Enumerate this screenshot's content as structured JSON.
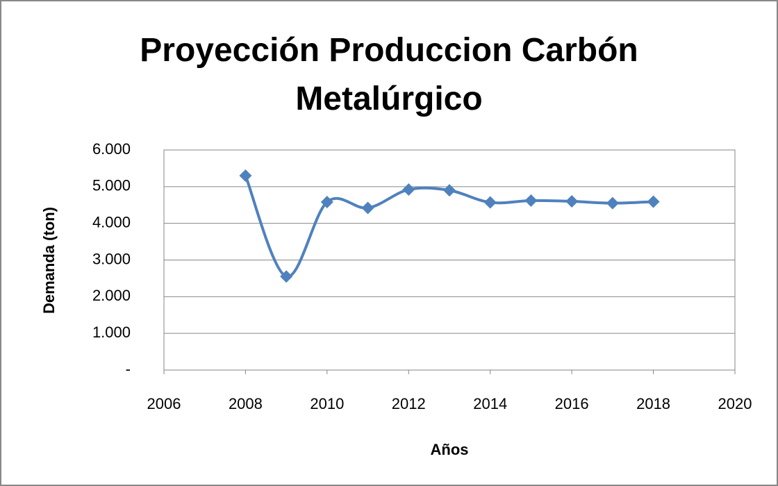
{
  "chart_data": {
    "type": "line",
    "title": "Proyección Produccion Carbón Metalúrgico",
    "x_label": "Años",
    "y_label": "Demanda (ton)",
    "x": [
      2008,
      2009,
      2010,
      2011,
      2012,
      2013,
      2014,
      2015,
      2016,
      2017,
      2018
    ],
    "series": [
      {
        "name": "Demanda",
        "color": "#4f81bd",
        "values": [
          5300,
          2550,
          4580,
          4420,
          4920,
          4900,
          4570,
          4620,
          4600,
          4550,
          4590
        ]
      }
    ],
    "xlim": [
      2006,
      2020
    ],
    "xticks": [
      2006,
      2008,
      2010,
      2012,
      2014,
      2016,
      2018,
      2020
    ],
    "ylim": [
      0,
      6000
    ],
    "yticks": [
      {
        "value": 0,
        "label": "-"
      },
      {
        "value": 1000,
        "label": "1.000"
      },
      {
        "value": 2000,
        "label": "2.000"
      },
      {
        "value": 3000,
        "label": "3.000"
      },
      {
        "value": 4000,
        "label": "4.000"
      },
      {
        "value": 5000,
        "label": "5.000"
      },
      {
        "value": 6000,
        "label": "6.000"
      }
    ],
    "grid": true,
    "smooth": true
  }
}
